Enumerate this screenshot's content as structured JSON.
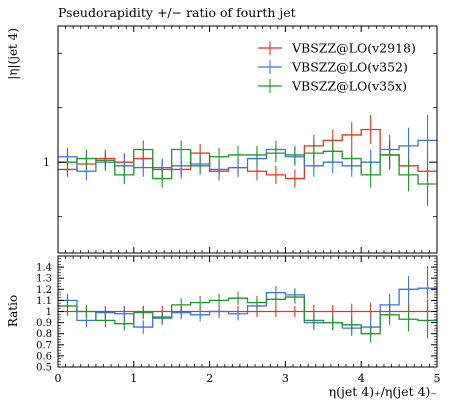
{
  "chart_data": {
    "type": "line",
    "title": "Pseudorapidity +/− ratio of fourth jet",
    "main": {
      "ylabel": "|η|(jet 4)",
      "yticks": [
        {
          "value": 1,
          "label": "1"
        }
      ],
      "ylim": [
        0.5,
        1.75
      ]
    },
    "ratio": {
      "ylabel": "Ratio",
      "ylim": [
        0.5,
        1.5
      ],
      "yticks": [
        {
          "value": 1.4,
          "label": "1.4"
        },
        {
          "value": 1.3,
          "label": "1.3"
        },
        {
          "value": 1.2,
          "label": "1.2"
        },
        {
          "value": 1.1,
          "label": "1.1"
        },
        {
          "value": 1.0,
          "label": "1"
        },
        {
          "value": 0.9,
          "label": "0.9"
        },
        {
          "value": 0.8,
          "label": "0.8"
        },
        {
          "value": 0.7,
          "label": "0.7"
        },
        {
          "value": 0.6,
          "label": "0.6"
        },
        {
          "value": 0.5,
          "label": "0.5"
        }
      ]
    },
    "xlabel": "η(jet 4)₊/η(jet 4)₋",
    "xlim": [
      0,
      5
    ],
    "xticks": [
      {
        "value": 0,
        "label": "0"
      },
      {
        "value": 1,
        "label": "1"
      },
      {
        "value": 2,
        "label": "2"
      },
      {
        "value": 3,
        "label": "3"
      },
      {
        "value": 4,
        "label": "4"
      },
      {
        "value": 5,
        "label": "5"
      }
    ],
    "bin_edges": [
      0,
      0.25,
      0.5,
      0.75,
      1.0,
      1.25,
      1.5,
      1.75,
      2.0,
      2.25,
      2.5,
      2.75,
      3.0,
      3.25,
      3.5,
      3.75,
      4.0,
      4.25,
      4.5,
      4.75,
      5.0
    ],
    "legend_position": "top-right",
    "series": [
      {
        "name": "VBSZZ@LO(v2918)",
        "color": "#e8321e",
        "values": [
          0.96,
          0.99,
          1.02,
          1.0,
          1.02,
          0.96,
          0.96,
          1.05,
          0.95,
          0.97,
          0.95,
          0.93,
          0.91,
          1.09,
          1.12,
          1.15,
          1.18,
          1.04,
          0.98,
          0.95
        ],
        "errors": [
          0.04,
          0.05,
          0.05,
          0.05,
          0.05,
          0.05,
          0.05,
          0.05,
          0.05,
          0.05,
          0.05,
          0.05,
          0.05,
          0.06,
          0.06,
          0.07,
          0.08,
          0.08,
          0.09,
          0.12
        ],
        "ratio": [
          1.0,
          1.0,
          1.0,
          1.0,
          1.0,
          1.0,
          1.0,
          1.0,
          1.0,
          1.0,
          1.0,
          1.0,
          1.0,
          1.0,
          1.0,
          1.0,
          1.0,
          1.0,
          1.0,
          1.0
        ],
        "ratio_errors": [
          0.04,
          0.05,
          0.05,
          0.05,
          0.05,
          0.05,
          0.05,
          0.05,
          0.05,
          0.05,
          0.05,
          0.05,
          0.05,
          0.06,
          0.06,
          0.07,
          0.08,
          0.08,
          0.09,
          0.12
        ]
      },
      {
        "name": "VBSZZ@LO(v352)",
        "color": "#3a73e8",
        "values": [
          1.03,
          0.95,
          1.0,
          0.98,
          0.97,
          0.97,
          0.98,
          0.99,
          0.96,
          0.97,
          1.02,
          1.07,
          1.03,
          0.98,
          1.0,
          0.98,
          1.0,
          1.07,
          1.09,
          1.12
        ],
        "errors": [
          0.05,
          0.05,
          0.05,
          0.06,
          0.05,
          0.05,
          0.05,
          0.05,
          0.05,
          0.05,
          0.05,
          0.05,
          0.05,
          0.06,
          0.06,
          0.06,
          0.07,
          0.08,
          0.1,
          0.14
        ],
        "ratio": [
          1.1,
          0.92,
          0.99,
          0.98,
          0.86,
          0.95,
          0.99,
          0.97,
          1.0,
          0.98,
          1.05,
          1.17,
          1.15,
          0.9,
          0.9,
          0.85,
          0.86,
          1.06,
          1.2,
          1.21
        ],
        "ratio_errors": [
          0.06,
          0.06,
          0.06,
          0.07,
          0.06,
          0.06,
          0.06,
          0.06,
          0.06,
          0.06,
          0.06,
          0.06,
          0.06,
          0.07,
          0.07,
          0.07,
          0.08,
          0.1,
          0.12,
          0.2
        ]
      },
      {
        "name": "VBSZZ@LO(v35x)",
        "color": "#1e9628",
        "values": [
          1.0,
          1.02,
          1.01,
          0.93,
          1.07,
          0.91,
          1.07,
          0.98,
          1.03,
          1.04,
          1.04,
          1.05,
          1.04,
          1.05,
          1.06,
          1.02,
          0.93,
          1.04,
          0.93,
          0.88
        ],
        "errors": [
          0.05,
          0.05,
          0.05,
          0.05,
          0.05,
          0.05,
          0.05,
          0.05,
          0.05,
          0.05,
          0.05,
          0.05,
          0.05,
          0.06,
          0.06,
          0.06,
          0.07,
          0.08,
          0.09,
          0.12
        ],
        "ratio": [
          1.05,
          1.0,
          0.92,
          0.89,
          0.99,
          0.94,
          1.06,
          1.08,
          1.1,
          1.12,
          1.08,
          1.11,
          1.13,
          0.92,
          0.9,
          0.88,
          0.8,
          0.97,
          0.93,
          0.92
        ],
        "ratio_errors": [
          0.06,
          0.06,
          0.06,
          0.06,
          0.06,
          0.06,
          0.06,
          0.06,
          0.06,
          0.06,
          0.06,
          0.06,
          0.06,
          0.07,
          0.07,
          0.07,
          0.08,
          0.09,
          0.11,
          0.16
        ]
      }
    ]
  }
}
